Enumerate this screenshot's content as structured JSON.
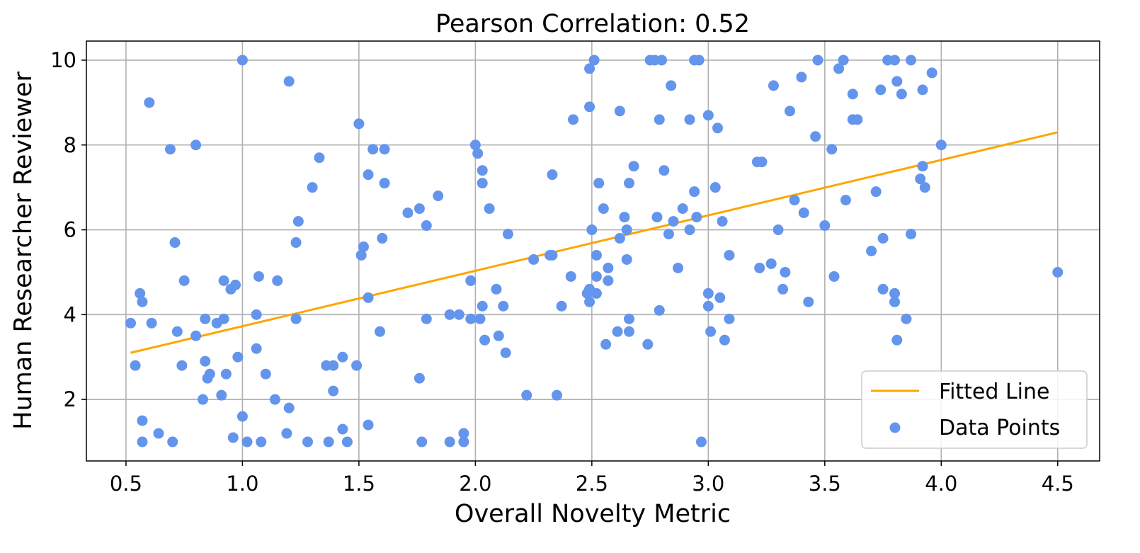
{
  "chart_data": {
    "type": "scatter",
    "title": "Pearson Correlation: 0.52",
    "xlabel": "Overall Novelty Metric",
    "ylabel": "Human Researcher Reviewer",
    "xlim": [
      0.33,
      4.68
    ],
    "ylim": [
      0.55,
      10.45
    ],
    "xticks": [
      0.5,
      1.0,
      1.5,
      2.0,
      2.5,
      3.0,
      3.5,
      4.0,
      4.5
    ],
    "xtick_labels": [
      "0.5",
      "1.0",
      "1.5",
      "2.0",
      "2.5",
      "3.0",
      "3.5",
      "4.0",
      "4.5"
    ],
    "yticks": [
      2,
      4,
      6,
      8,
      10
    ],
    "ytick_labels": [
      "2",
      "4",
      "6",
      "8",
      "10"
    ],
    "grid": true,
    "legend_position": "lower-right",
    "colors": {
      "points": "#6495ed",
      "line": "#ffa500",
      "grid": "#b0b0b0"
    },
    "series": [
      {
        "name": "Fitted Line",
        "type": "line",
        "x": [
          0.52,
          4.5
        ],
        "y": [
          3.1,
          8.3
        ]
      },
      {
        "name": "Data Points",
        "type": "scatter",
        "points": [
          [
            0.52,
            3.8
          ],
          [
            0.54,
            2.8
          ],
          [
            0.56,
            4.5
          ],
          [
            0.57,
            4.3
          ],
          [
            0.57,
            1.5
          ],
          [
            0.57,
            1.0
          ],
          [
            0.6,
            9.0
          ],
          [
            0.61,
            3.8
          ],
          [
            0.64,
            1.2
          ],
          [
            0.69,
            7.9
          ],
          [
            0.7,
            1.0
          ],
          [
            0.71,
            5.7
          ],
          [
            0.72,
            3.6
          ],
          [
            0.74,
            2.8
          ],
          [
            0.75,
            4.8
          ],
          [
            0.8,
            8.0
          ],
          [
            0.8,
            3.5
          ],
          [
            0.83,
            2.0
          ],
          [
            0.84,
            3.9
          ],
          [
            0.84,
            2.9
          ],
          [
            0.85,
            2.5
          ],
          [
            0.86,
            2.6
          ],
          [
            0.89,
            3.8
          ],
          [
            0.91,
            2.1
          ],
          [
            0.92,
            4.8
          ],
          [
            0.92,
            3.9
          ],
          [
            0.93,
            2.6
          ],
          [
            0.95,
            4.6
          ],
          [
            0.96,
            1.1
          ],
          [
            0.97,
            4.7
          ],
          [
            0.98,
            3.0
          ],
          [
            1.0,
            10.0
          ],
          [
            1.0,
            1.6
          ],
          [
            1.02,
            1.0
          ],
          [
            1.06,
            4.0
          ],
          [
            1.06,
            3.2
          ],
          [
            1.07,
            4.9
          ],
          [
            1.08,
            1.0
          ],
          [
            1.1,
            2.6
          ],
          [
            1.14,
            2.0
          ],
          [
            1.15,
            4.8
          ],
          [
            1.19,
            1.2
          ],
          [
            1.2,
            9.5
          ],
          [
            1.2,
            1.8
          ],
          [
            1.23,
            5.7
          ],
          [
            1.23,
            3.9
          ],
          [
            1.24,
            6.2
          ],
          [
            1.28,
            1.0
          ],
          [
            1.3,
            7.0
          ],
          [
            1.33,
            7.7
          ],
          [
            1.36,
            2.8
          ],
          [
            1.37,
            1.0
          ],
          [
            1.39,
            2.8
          ],
          [
            1.39,
            2.2
          ],
          [
            1.43,
            3.0
          ],
          [
            1.43,
            1.3
          ],
          [
            1.45,
            1.0
          ],
          [
            1.49,
            2.8
          ],
          [
            1.5,
            8.5
          ],
          [
            1.51,
            5.4
          ],
          [
            1.52,
            5.6
          ],
          [
            1.54,
            7.3
          ],
          [
            1.54,
            4.4
          ],
          [
            1.54,
            1.4
          ],
          [
            1.56,
            7.9
          ],
          [
            1.59,
            3.6
          ],
          [
            1.6,
            5.8
          ],
          [
            1.61,
            7.9
          ],
          [
            1.61,
            7.1
          ],
          [
            1.71,
            6.4
          ],
          [
            1.76,
            6.5
          ],
          [
            1.76,
            2.5
          ],
          [
            1.77,
            1.0
          ],
          [
            1.79,
            6.1
          ],
          [
            1.79,
            3.9
          ],
          [
            1.84,
            6.8
          ],
          [
            1.89,
            4.0
          ],
          [
            1.89,
            1.0
          ],
          [
            1.93,
            4.0
          ],
          [
            1.95,
            1.2
          ],
          [
            1.95,
            1.0
          ],
          [
            1.98,
            4.8
          ],
          [
            1.98,
            3.9
          ],
          [
            2.0,
            8.0
          ],
          [
            2.01,
            7.8
          ],
          [
            2.02,
            3.9
          ],
          [
            2.03,
            7.4
          ],
          [
            2.03,
            7.1
          ],
          [
            2.03,
            4.2
          ],
          [
            2.04,
            3.4
          ],
          [
            2.06,
            6.5
          ],
          [
            2.09,
            4.6
          ],
          [
            2.1,
            3.5
          ],
          [
            2.12,
            4.2
          ],
          [
            2.13,
            3.1
          ],
          [
            2.14,
            5.9
          ],
          [
            2.22,
            2.1
          ],
          [
            2.25,
            5.3
          ],
          [
            2.32,
            5.4
          ],
          [
            2.33,
            7.3
          ],
          [
            2.33,
            5.4
          ],
          [
            2.35,
            2.1
          ],
          [
            2.37,
            4.2
          ],
          [
            2.41,
            4.9
          ],
          [
            2.42,
            8.6
          ],
          [
            2.48,
            4.5
          ],
          [
            2.49,
            9.8
          ],
          [
            2.49,
            8.9
          ],
          [
            2.49,
            4.6
          ],
          [
            2.49,
            4.3
          ],
          [
            2.5,
            6.0
          ],
          [
            2.51,
            10.0
          ],
          [
            2.52,
            5.4
          ],
          [
            2.52,
            4.9
          ],
          [
            2.52,
            4.5
          ],
          [
            2.53,
            7.1
          ],
          [
            2.55,
            6.5
          ],
          [
            2.56,
            3.3
          ],
          [
            2.57,
            5.1
          ],
          [
            2.57,
            4.8
          ],
          [
            2.61,
            3.6
          ],
          [
            2.62,
            8.8
          ],
          [
            2.62,
            5.8
          ],
          [
            2.64,
            6.3
          ],
          [
            2.65,
            6.0
          ],
          [
            2.65,
            5.3
          ],
          [
            2.66,
            7.1
          ],
          [
            2.66,
            3.9
          ],
          [
            2.66,
            3.6
          ],
          [
            2.68,
            7.5
          ],
          [
            2.74,
            3.3
          ],
          [
            2.75,
            10.0
          ],
          [
            2.77,
            10.0
          ],
          [
            2.78,
            6.3
          ],
          [
            2.79,
            8.6
          ],
          [
            2.79,
            4.1
          ],
          [
            2.8,
            10.0
          ],
          [
            2.81,
            7.4
          ],
          [
            2.83,
            5.9
          ],
          [
            2.84,
            9.4
          ],
          [
            2.85,
            6.2
          ],
          [
            2.87,
            5.1
          ],
          [
            2.89,
            6.5
          ],
          [
            2.92,
            8.6
          ],
          [
            2.92,
            6.0
          ],
          [
            2.94,
            10.0
          ],
          [
            2.94,
            6.9
          ],
          [
            2.95,
            6.3
          ],
          [
            2.96,
            10.0
          ],
          [
            2.97,
            1.0
          ],
          [
            3.0,
            8.7
          ],
          [
            3.0,
            4.5
          ],
          [
            3.0,
            4.2
          ],
          [
            3.01,
            3.6
          ],
          [
            3.03,
            7.0
          ],
          [
            3.04,
            8.4
          ],
          [
            3.05,
            4.4
          ],
          [
            3.06,
            6.2
          ],
          [
            3.07,
            3.4
          ],
          [
            3.09,
            5.4
          ],
          [
            3.09,
            3.9
          ],
          [
            3.21,
            7.6
          ],
          [
            3.22,
            5.1
          ],
          [
            3.23,
            7.6
          ],
          [
            3.27,
            5.2
          ],
          [
            3.28,
            9.4
          ],
          [
            3.3,
            6.0
          ],
          [
            3.32,
            4.6
          ],
          [
            3.33,
            5.0
          ],
          [
            3.35,
            8.8
          ],
          [
            3.37,
            6.7
          ],
          [
            3.4,
            9.6
          ],
          [
            3.41,
            6.4
          ],
          [
            3.43,
            4.3
          ],
          [
            3.46,
            8.2
          ],
          [
            3.47,
            10.0
          ],
          [
            3.5,
            6.1
          ],
          [
            3.53,
            7.9
          ],
          [
            3.54,
            4.9
          ],
          [
            3.56,
            9.8
          ],
          [
            3.58,
            10.0
          ],
          [
            3.59,
            6.7
          ],
          [
            3.62,
            9.2
          ],
          [
            3.62,
            8.6
          ],
          [
            3.64,
            8.6
          ],
          [
            3.7,
            5.5
          ],
          [
            3.72,
            6.9
          ],
          [
            3.74,
            9.3
          ],
          [
            3.75,
            5.8
          ],
          [
            3.75,
            4.6
          ],
          [
            3.77,
            10.0
          ],
          [
            3.8,
            10.0
          ],
          [
            3.8,
            4.5
          ],
          [
            3.8,
            4.3
          ],
          [
            3.81,
            9.5
          ],
          [
            3.81,
            3.4
          ],
          [
            3.83,
            9.2
          ],
          [
            3.85,
            3.9
          ],
          [
            3.87,
            10.0
          ],
          [
            3.87,
            5.9
          ],
          [
            3.91,
            7.2
          ],
          [
            3.92,
            9.3
          ],
          [
            3.92,
            7.5
          ],
          [
            3.93,
            7.0
          ],
          [
            3.96,
            9.7
          ],
          [
            4.0,
            8.0
          ],
          [
            4.5,
            5.0
          ]
        ]
      }
    ]
  }
}
